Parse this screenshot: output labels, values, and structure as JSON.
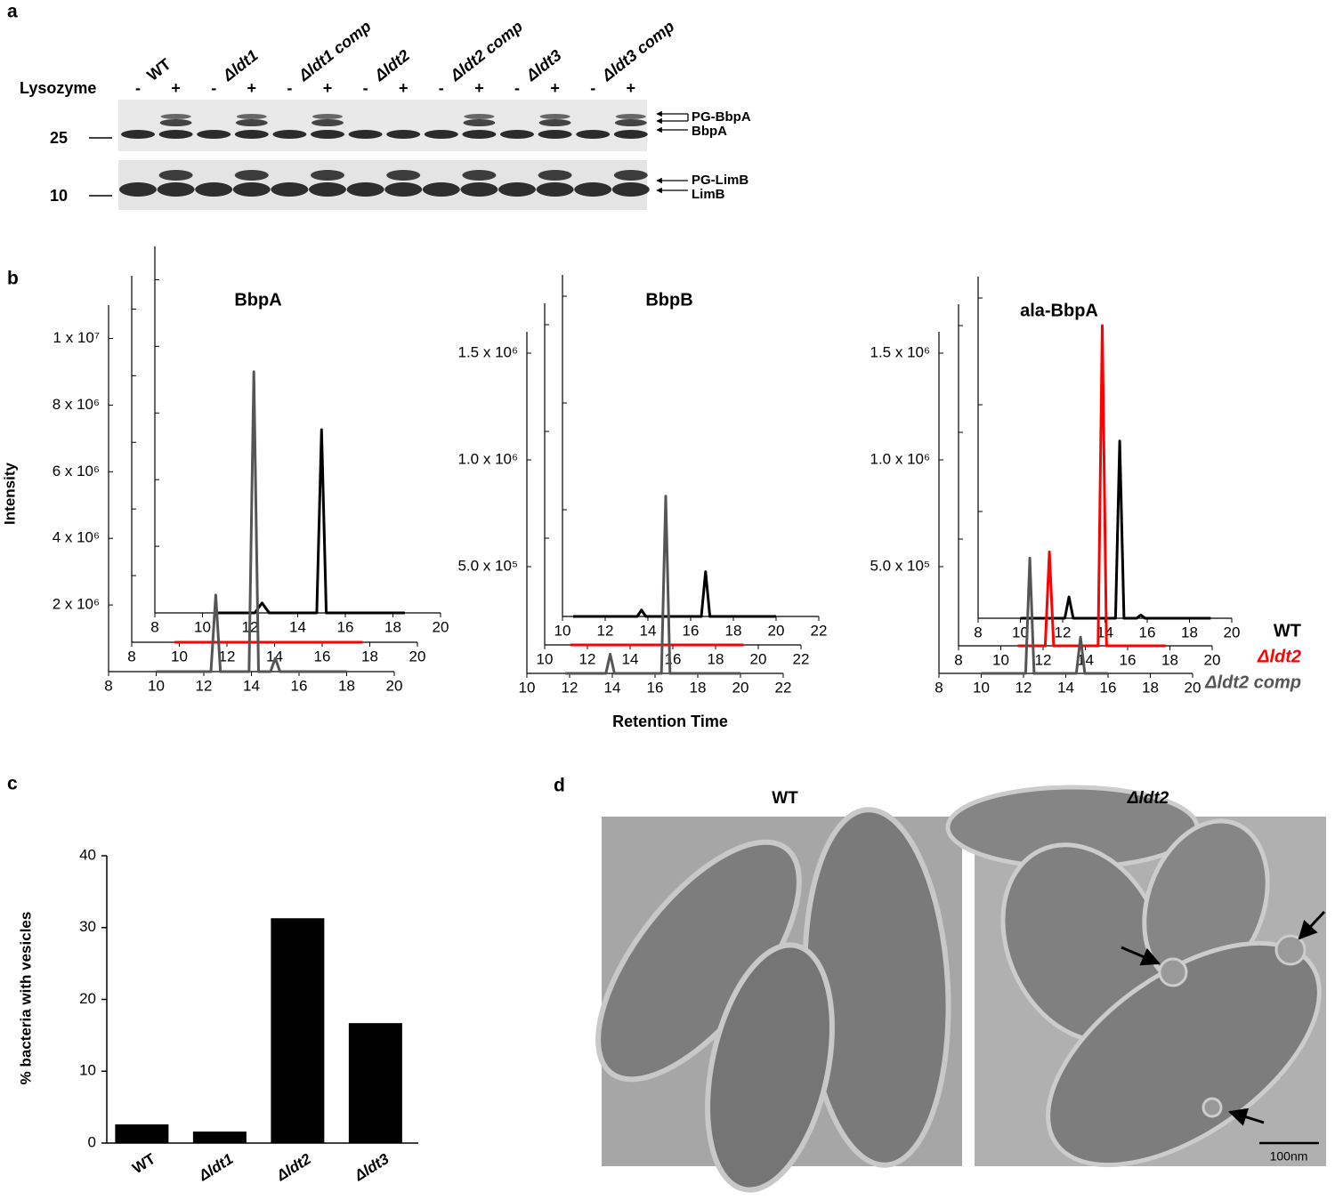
{
  "panel_a": {
    "label": "a",
    "lysozyme_label": "Lysozyme",
    "strains": [
      "WT",
      "Δldt1",
      "Δldt1 comp",
      "Δldt2",
      "Δldt2 comp",
      "Δldt3",
      "Δldt3 comp"
    ],
    "signs": [
      "-",
      "+",
      "-",
      "+",
      "-",
      "+",
      "-",
      "+",
      "-",
      "+",
      "-",
      "+",
      "-",
      "+"
    ],
    "markers": [
      "25",
      "10"
    ],
    "band_labels": [
      "PG-BbpA",
      "BbpA",
      "PG-LimB",
      "LimB"
    ]
  },
  "panel_b": {
    "label": "b",
    "ylabel": "Intensity",
    "xlabel": "Retention Time"
  },
  "chart_data": [
    {
      "type": "line",
      "title": "BbpA",
      "xlim": [
        8,
        20
      ],
      "xticks": [
        8,
        10,
        12,
        14,
        16,
        18,
        20
      ],
      "ylim": [
        0,
        11000000
      ],
      "yticks": [
        {
          "value": 2000000,
          "label": "2 x 10⁶"
        },
        {
          "value": 4000000,
          "label": "4 x 10⁶"
        },
        {
          "value": 6000000,
          "label": "6 x 10⁶"
        },
        {
          "value": 8000000,
          "label": "8 x 10⁶"
        },
        {
          "value": 10000000,
          "label": "1 x 10⁷"
        }
      ],
      "series": [
        {
          "color": "#000000",
          "x": [
            10.5,
            12.2,
            12.5,
            12.8,
            14.8,
            15,
            15.2,
            18.5
          ],
          "values": [
            0,
            0,
            300000,
            0,
            0,
            5500000,
            0,
            0
          ]
        },
        {
          "color": "#ff0000",
          "x": [
            9.8,
            17.7
          ],
          "values": [
            0,
            0
          ]
        },
        {
          "color": "#555555",
          "x": [
            10,
            12.3,
            12.5,
            12.7,
            13.9,
            14.1,
            14.3,
            14.8,
            15,
            15.2,
            18
          ],
          "values": [
            0,
            0,
            2300000,
            0,
            0,
            9000000,
            0,
            0,
            400000,
            0,
            0
          ]
        }
      ]
    },
    {
      "type": "line",
      "title": "BbpB",
      "xlim": [
        10,
        22
      ],
      "xticks": [
        10,
        12,
        14,
        16,
        18,
        20,
        22
      ],
      "ylim": [
        0,
        1600000
      ],
      "yticks": [
        {
          "value": 500000,
          "label": "5.0 x 10⁵"
        },
        {
          "value": 1000000,
          "label": "1.0 x 10⁶"
        },
        {
          "value": 1500000,
          "label": "1.5 x 10⁶"
        }
      ],
      "series": [
        {
          "color": "#000000",
          "x": [
            10.5,
            13.5,
            13.7,
            13.9,
            16.5,
            16.7,
            16.9,
            20
          ],
          "values": [
            0,
            0,
            30000,
            0,
            0,
            210000,
            0,
            0
          ]
        },
        {
          "color": "#ff0000",
          "x": [
            11.2,
            19.3
          ],
          "values": [
            0,
            0
          ]
        },
        {
          "color": "#555555",
          "x": [
            11.8,
            13.7,
            13.9,
            14.1,
            16.3,
            16.5,
            16.7,
            20
          ],
          "values": [
            0,
            0,
            90000,
            0,
            0,
            830000,
            0,
            0
          ]
        }
      ]
    },
    {
      "type": "line",
      "title": "ala-BbpA",
      "xlim": [
        8,
        20
      ],
      "xticks": [
        8,
        10,
        12,
        14,
        16,
        18,
        20
      ],
      "ylim": [
        0,
        1600000
      ],
      "yticks": [
        {
          "value": 500000,
          "label": "5.0 x 10⁵"
        },
        {
          "value": 1000000,
          "label": "1.0 x 10⁶"
        },
        {
          "value": 1500000,
          "label": "1.5 x 10⁶"
        }
      ],
      "series": [
        {
          "name": "WT",
          "color": "#000000",
          "x": [
            10,
            12.1,
            12.3,
            12.5,
            14.5,
            14.7,
            14.9,
            15.5,
            15.7,
            15.9,
            19
          ],
          "values": [
            0,
            0,
            100000,
            0,
            0,
            830000,
            0,
            0,
            15000,
            0,
            0
          ]
        },
        {
          "name": "Δldt2",
          "color": "#ff0000",
          "x": [
            10.8,
            12.1,
            12.3,
            12.5,
            14.6,
            14.8,
            15,
            17.8
          ],
          "values": [
            0,
            0,
            440000,
            0,
            0,
            1500000,
            0,
            0
          ]
        },
        {
          "name": "Δldt2 comp",
          "color": "#555555",
          "x": [
            10,
            12.1,
            12.3,
            12.5,
            14.5,
            14.7,
            14.9,
            16
          ],
          "values": [
            0,
            0,
            540000,
            0,
            0,
            170000,
            0,
            0
          ]
        }
      ]
    },
    {
      "type": "bar",
      "panel": "c",
      "ylabel": "% bacteria with vesicles",
      "categories": [
        "WT",
        "Δldt1",
        "Δldt2",
        "Δldt3"
      ],
      "values": [
        2.6,
        1.6,
        31.3,
        16.7
      ],
      "color": "#000000",
      "ylim": [
        0,
        40
      ],
      "yticks": [
        0,
        10,
        20,
        30,
        40
      ]
    }
  ],
  "panel_d": {
    "label": "d",
    "titles": [
      "WT",
      "Δldt2"
    ],
    "scale_bar": "100nm"
  }
}
